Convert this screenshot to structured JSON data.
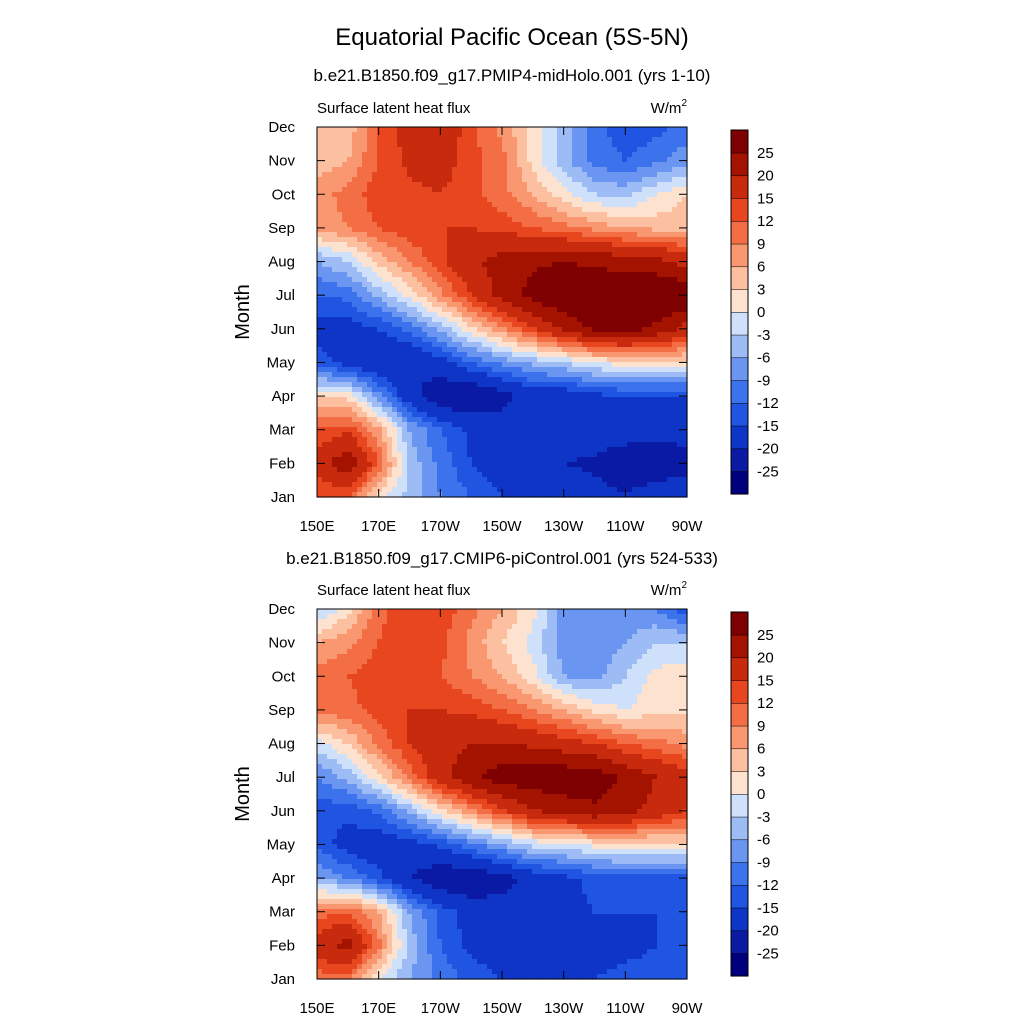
{
  "figure": {
    "title": "Equatorial Pacific Ocean (5S-5N)"
  },
  "colorbar": {
    "levels": [
      -25,
      -20,
      -15,
      -12,
      -9,
      -6,
      -3,
      0,
      3,
      6,
      9,
      12,
      15,
      20,
      25
    ],
    "labels": [
      "25",
      "20",
      "15",
      "12",
      "9",
      "6",
      "3",
      "0",
      "-3",
      "-6",
      "-9",
      "-12",
      "-15",
      "-20",
      "-25"
    ],
    "colors": [
      "#00007f",
      "#0a1aa5",
      "#0f35c7",
      "#1f55e0",
      "#3c72ec",
      "#6a96f2",
      "#9dbcf6",
      "#cfe0fb",
      "#fde3cf",
      "#fcc0a0",
      "#f99870",
      "#f46e45",
      "#e8461f",
      "#c72a0d",
      "#a31300",
      "#7f0000"
    ]
  },
  "chart_data": [
    {
      "type": "heatmap",
      "title": "b.e21.B1850.f09_g17.PMIP4-midHolo.001 (yrs 1-10)",
      "variable": "Surface latent heat flux",
      "units": "W/m",
      "units_superscript": "2",
      "xlabel": "",
      "ylabel": "Month",
      "x_tick_labels": [
        "150E",
        "170E",
        "170W",
        "150W",
        "130W",
        "110W",
        "90W"
      ],
      "y_tick_labels": [
        "Jan",
        "Feb",
        "Mar",
        "Apr",
        "May",
        "Jun",
        "Jul",
        "Aug",
        "Sep",
        "Oct",
        "Nov",
        "Dec"
      ],
      "x_range_degE": [
        150,
        270
      ],
      "y_range_month": [
        1,
        12
      ],
      "values": [
        [
          12,
          12,
          1,
          -4,
          -9,
          -12,
          -15,
          -16,
          -17,
          -18,
          -19,
          -17,
          -16
        ],
        [
          17,
          24,
          12,
          -4,
          -10,
          -15,
          -17,
          -18,
          -20,
          -21,
          -25,
          -24,
          -22
        ],
        [
          12,
          14,
          7,
          -6,
          -12,
          -16,
          -17,
          -16,
          -17,
          -16,
          -16,
          -18,
          -18
        ],
        [
          2,
          2,
          -8,
          -18,
          -24,
          -25,
          -22,
          -18,
          -18,
          -16,
          -15,
          -15,
          -15
        ],
        [
          -13,
          -17,
          -20,
          -20,
          -17,
          -12,
          -8,
          -5,
          -3,
          0,
          2,
          2,
          2
        ],
        [
          -17,
          -17,
          -15,
          -11,
          -5,
          2,
          8,
          15,
          21,
          26,
          27,
          24,
          18
        ],
        [
          -12,
          -11,
          -5,
          1,
          8,
          15,
          22,
          27,
          30,
          30,
          29,
          30,
          30
        ],
        [
          -6,
          -3,
          4,
          9,
          14,
          19,
          22,
          24,
          25,
          24,
          23,
          22,
          18
        ],
        [
          7,
          9,
          12,
          14,
          15,
          15,
          14,
          12,
          10,
          8,
          6,
          5,
          5
        ],
        [
          8,
          10,
          14,
          14,
          15,
          13,
          10,
          6,
          1,
          -3,
          -4,
          0,
          3
        ],
        [
          4,
          6,
          12,
          16,
          17,
          13,
          10,
          2,
          -5,
          -10,
          -12,
          -10,
          -7
        ],
        [
          3,
          4,
          12,
          17,
          19,
          13,
          8,
          2,
          -4,
          -11,
          -14,
          -13,
          -11
        ]
      ]
    },
    {
      "type": "heatmap",
      "title": "b.e21.B1850.f09_g17.CMIP6-piControl.001 (yrs 524-533)",
      "variable": "Surface latent heat flux",
      "units": "W/m",
      "units_superscript": "2",
      "xlabel": "",
      "ylabel": "Month",
      "x_tick_labels": [
        "150E",
        "170E",
        "170W",
        "150W",
        "130W",
        "110W",
        "90W"
      ],
      "y_tick_labels": [
        "Jan",
        "Feb",
        "Mar",
        "Apr",
        "May",
        "Jun",
        "Jul",
        "Aug",
        "Sep",
        "Oct",
        "Nov",
        "Dec"
      ],
      "x_range_degE": [
        150,
        270
      ],
      "y_range_month": [
        1,
        12
      ],
      "values": [
        [
          10,
          10,
          0,
          -6,
          -10,
          -13,
          -15,
          -16,
          -16,
          -15,
          -14,
          -14,
          -13
        ],
        [
          18,
          22,
          10,
          -4,
          -12,
          -16,
          -18,
          -20,
          -19,
          -17,
          -16,
          -15,
          -14
        ],
        [
          10,
          12,
          6,
          -6,
          -13,
          -17,
          -18,
          -17,
          -16,
          -15,
          -15,
          -15,
          -14
        ],
        [
          -6,
          -9,
          -14,
          -20,
          -24,
          -24,
          -22,
          -18,
          -16,
          -14,
          -13,
          -13,
          -13
        ],
        [
          -13,
          -17,
          -18,
          -17,
          -14,
          -10,
          -6,
          -2,
          -1,
          1,
          2,
          2,
          2
        ],
        [
          -14,
          -14,
          -11,
          -5,
          2,
          8,
          14,
          20,
          22,
          24,
          22,
          18,
          15
        ],
        [
          -9,
          -5,
          2,
          10,
          18,
          24,
          28,
          28,
          29,
          28,
          24,
          20,
          17
        ],
        [
          -1,
          3,
          10,
          15,
          18,
          20,
          20,
          19,
          17,
          15,
          12,
          10,
          8
        ],
        [
          10,
          11,
          13,
          15,
          15,
          14,
          12,
          9,
          6,
          2,
          0,
          2,
          2
        ],
        [
          10,
          12,
          14,
          14,
          12,
          9,
          6,
          1,
          -6,
          -7,
          -3,
          1,
          2
        ],
        [
          6,
          8,
          12,
          14,
          13,
          8,
          3,
          -1,
          -8,
          -9,
          -6,
          -3,
          -3
        ],
        [
          -4,
          2,
          11,
          15,
          14,
          10,
          6,
          1,
          -7,
          -9,
          -8,
          -9,
          -14
        ]
      ]
    }
  ]
}
